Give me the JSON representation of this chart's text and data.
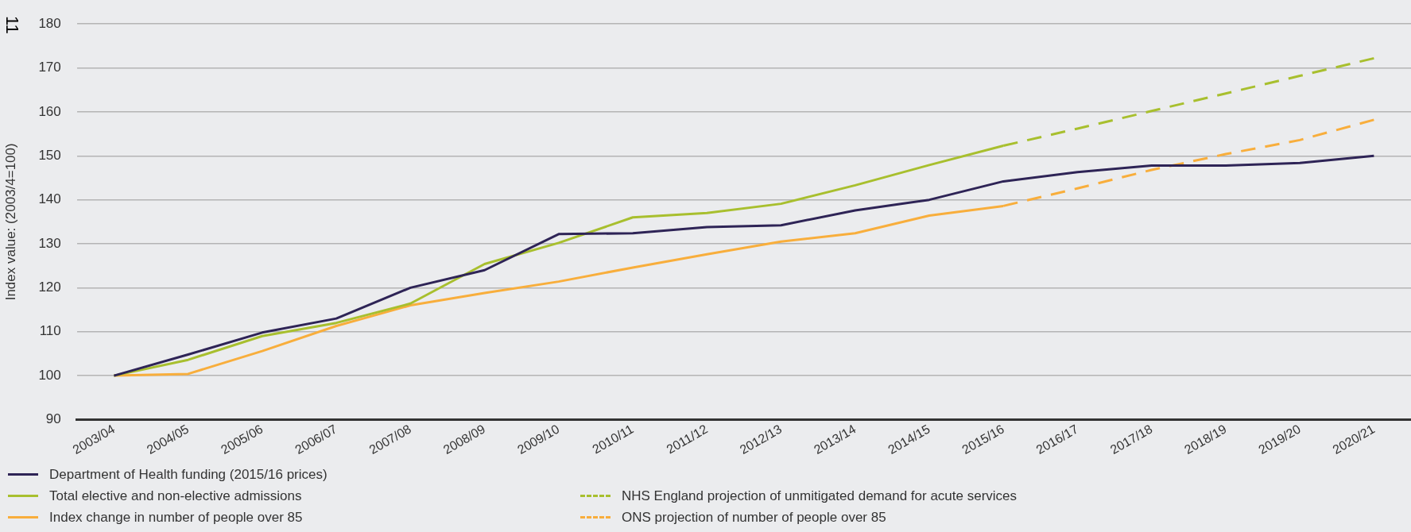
{
  "chart_data": {
    "type": "line",
    "ylabel": "Index value: (2003/4=100)",
    "annotations": [
      "11"
    ],
    "categories": [
      "2003/04",
      "2004/05",
      "2005/06",
      "2006/07",
      "2007/08",
      "2008/09",
      "2009/10",
      "2010/11",
      "2011/12",
      "2012/13",
      "2013/14",
      "2014/15",
      "2015/16",
      "2016/17",
      "2017/18",
      "2018/19",
      "2019/20",
      "2020/21"
    ],
    "ylim": [
      90,
      180
    ],
    "yticks": [
      90,
      100,
      110,
      120,
      130,
      140,
      150,
      160,
      170,
      180
    ],
    "grid": "y",
    "legend": "bottom",
    "marker": "none",
    "series": [
      {
        "name": "Department of Health funding (2015/16 prices)",
        "color": "#2e2456",
        "line_style": "solid",
        "values": [
          100,
          104.8,
          109.8,
          113,
          120,
          124,
          132.2,
          132.4,
          133.8,
          134.2,
          137.6,
          140,
          144.2,
          146.3,
          147.8,
          147.8,
          148.4,
          150
        ]
      },
      {
        "name": "Total elective and non-elective admissions",
        "color": "#a8bf2e",
        "line_style": "solid",
        "values": [
          100,
          103.6,
          109,
          112,
          116.4,
          125.4,
          130.2,
          136,
          137,
          139.1,
          143.3,
          147.9,
          152.3,
          null,
          null,
          null,
          null,
          null
        ]
      },
      {
        "name": "Index change in number of people over 85",
        "color": "#f8ae3c",
        "line_style": "solid",
        "values": [
          100,
          100.4,
          105.6,
          111.3,
          116,
          118.8,
          121.4,
          124.6,
          127.6,
          130.5,
          132.4,
          136.4,
          138.6,
          null,
          null,
          null,
          null,
          null
        ]
      },
      {
        "name": "NHS England projection of unmitigated demand for acute services",
        "color": "#a8bf2e",
        "line_style": "dashed",
        "values": [
          null,
          null,
          null,
          null,
          null,
          null,
          null,
          null,
          null,
          null,
          null,
          null,
          152.3,
          156.2,
          160.2,
          164.2,
          168.2,
          172.2
        ]
      },
      {
        "name": "ONS projection of number of people over 85",
        "color": "#f8ae3c",
        "line_style": "dashed",
        "values": [
          null,
          null,
          null,
          null,
          null,
          null,
          null,
          null,
          null,
          null,
          null,
          null,
          138.6,
          142.6,
          146.8,
          150.4,
          153.6,
          158.2
        ]
      }
    ]
  }
}
